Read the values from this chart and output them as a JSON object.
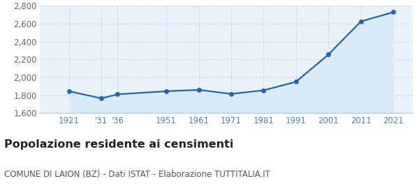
{
  "years": [
    1921,
    1931,
    1936,
    1951,
    1961,
    1971,
    1981,
    1991,
    2001,
    2011,
    2021
  ],
  "population": [
    1845,
    1765,
    1810,
    1845,
    1860,
    1815,
    1855,
    1950,
    2255,
    2625,
    2730
  ],
  "x_labels": [
    "1921",
    "'31",
    "'36",
    "1951",
    "1961",
    "1971",
    "1981",
    "1991",
    "2001",
    "2011",
    "2021"
  ],
  "ylim": [
    1600,
    2800
  ],
  "yticks": [
    1600,
    1800,
    2000,
    2200,
    2400,
    2600,
    2800
  ],
  "xlim_left": 1912,
  "xlim_right": 2027,
  "line_color": "#2565ae",
  "fill_color": "#daeaf7",
  "marker_color": "#2565ae",
  "bg_color": "#ffffff",
  "plot_bg_color": "#e8f2fb",
  "grid_color": "#c8d8e8",
  "title": "Popolazione residente ai censimenti",
  "subtitle": "COMUNE DI LAION (BZ) - Dati ISTAT - Elaborazione TUTTITALIA.IT",
  "title_fontsize": 11.5,
  "subtitle_fontsize": 8.5,
  "tick_fontsize": 8.5,
  "ytick_color": "#666666",
  "xtick_color": "#4a80c4"
}
